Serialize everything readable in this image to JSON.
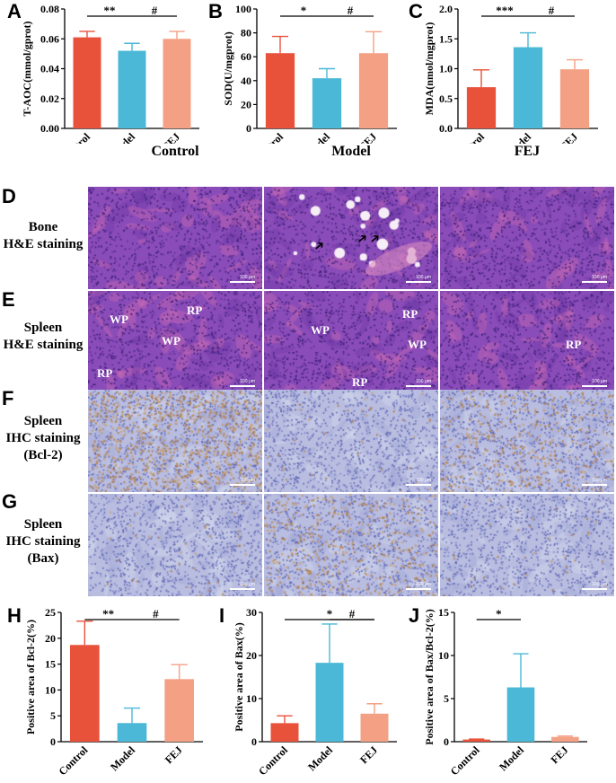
{
  "panel_letters": {
    "A": "A",
    "B": "B",
    "C": "C",
    "D": "D",
    "E": "E",
    "F": "F",
    "G": "G",
    "H": "H",
    "I": "I",
    "J": "J"
  },
  "column_headers": [
    "Control",
    "Model",
    "FEJ"
  ],
  "row_labels": {
    "D": [
      "Bone",
      "H&E staining"
    ],
    "E": [
      "Spleen",
      "H&E staining"
    ],
    "F": [
      "Spleen",
      "IHC staining",
      "(Bcl-2)"
    ],
    "G": [
      "Spleen",
      "IHC staining",
      "(Bax)"
    ]
  },
  "scale_bar_text": "100 μm",
  "region_labels": {
    "wp": "WP",
    "rp": "RP"
  },
  "tissue_colors": {
    "he_base": "#8a4cb8",
    "he_pink": "#d46fb3",
    "ihc_base": "#b9bde0",
    "ihc_brown": "#b07a3c"
  },
  "chart_data": [
    {
      "id": "A",
      "type": "bar",
      "categories": [
        "Control",
        "Model",
        "FEJ"
      ],
      "values": [
        0.061,
        0.052,
        0.06
      ],
      "errors": [
        0.004,
        0.005,
        0.005
      ],
      "ylabel": "T-AOC(mmol/gprot)",
      "ylim": [
        0,
        0.08
      ],
      "yticks": [
        "0.00",
        "0.02",
        "0.04",
        "0.06",
        "0.08"
      ],
      "colors": [
        "#e8513a",
        "#4ab8d6",
        "#f4a084"
      ],
      "sig": [
        {
          "from": 0,
          "to": 1,
          "label": "**"
        },
        {
          "from": 1,
          "to": 2,
          "label": "#"
        }
      ]
    },
    {
      "id": "B",
      "type": "bar",
      "categories": [
        "Control",
        "Model",
        "FEJ"
      ],
      "values": [
        63,
        42,
        63
      ],
      "errors": [
        14,
        8,
        18
      ],
      "ylabel": "SOD(U/mgprot)",
      "ylim": [
        0,
        100
      ],
      "yticks": [
        "0",
        "20",
        "40",
        "60",
        "80",
        "100"
      ],
      "colors": [
        "#e8513a",
        "#4ab8d6",
        "#f4a084"
      ],
      "sig": [
        {
          "from": 0,
          "to": 1,
          "label": "*"
        },
        {
          "from": 1,
          "to": 2,
          "label": "#"
        }
      ]
    },
    {
      "id": "C",
      "type": "bar",
      "categories": [
        "Control",
        "Model",
        "FEJ"
      ],
      "values": [
        0.69,
        1.36,
        0.99
      ],
      "errors": [
        0.29,
        0.24,
        0.16
      ],
      "ylabel": "MDA(nmol/mgprot)",
      "ylim": [
        0,
        2.0
      ],
      "yticks": [
        "0.0",
        "0.5",
        "1.0",
        "1.5",
        "2.0"
      ],
      "colors": [
        "#e8513a",
        "#4ab8d6",
        "#f4a084"
      ],
      "sig": [
        {
          "from": 0,
          "to": 1,
          "label": "***"
        },
        {
          "from": 1,
          "to": 2,
          "label": "#"
        }
      ]
    },
    {
      "id": "H",
      "type": "bar",
      "categories": [
        "Control",
        "Model",
        "FEJ"
      ],
      "values": [
        18.7,
        3.6,
        12.1
      ],
      "errors": [
        4.6,
        2.9,
        2.8
      ],
      "ylabel": "Positive area of Bcl-2(%)",
      "ylim": [
        0,
        25
      ],
      "yticks": [
        "0",
        "5",
        "10",
        "15",
        "20",
        "25"
      ],
      "colors": [
        "#e8513a",
        "#4ab8d6",
        "#f4a084"
      ],
      "sig": [
        {
          "from": 0,
          "to": 1,
          "label": "**"
        },
        {
          "from": 1,
          "to": 2,
          "label": "#"
        }
      ]
    },
    {
      "id": "I",
      "type": "bar",
      "categories": [
        "Control",
        "Model",
        "FEJ"
      ],
      "values": [
        4.3,
        18.3,
        6.5
      ],
      "errors": [
        1.7,
        9.0,
        2.3
      ],
      "ylabel": "Positive area of Bax(%)",
      "ylim": [
        0,
        30
      ],
      "yticks": [
        "0",
        "10",
        "20",
        "30"
      ],
      "colors": [
        "#e8513a",
        "#4ab8d6",
        "#f4a084"
      ],
      "sig": [
        {
          "from": 0,
          "to": 2,
          "label": "*"
        },
        {
          "from": 1,
          "to": 2,
          "label": "#"
        }
      ]
    },
    {
      "id": "J",
      "type": "bar",
      "categories": [
        "Control",
        "Model",
        "FEJ"
      ],
      "values": [
        0.25,
        6.3,
        0.55
      ],
      "errors": [
        0.05,
        3.9,
        0.1
      ],
      "ylabel": "Positive area of Bax/Bcl-2(%)",
      "ylim": [
        0,
        15
      ],
      "yticks": [
        "0",
        "5",
        "10",
        "15"
      ],
      "colors": [
        "#e8513a",
        "#4ab8d6",
        "#f4a084"
      ],
      "sig": [
        {
          "from": 0,
          "to": 1,
          "label": "*"
        }
      ]
    }
  ]
}
